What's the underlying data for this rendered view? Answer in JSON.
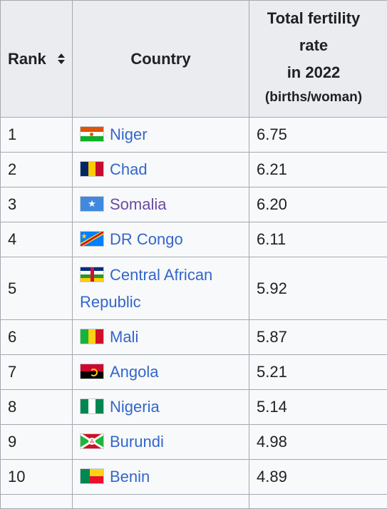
{
  "table": {
    "headers": {
      "rank": "Rank",
      "country": "Country",
      "tfr_line1": "Total fertility",
      "tfr_line2": "rate",
      "tfr_line3": "in 2022",
      "tfr_unit": "(births/woman)"
    },
    "rows": [
      {
        "rank": "1",
        "country": "Niger",
        "tfr": "6.75",
        "flag_icon": "niger-flag-icon"
      },
      {
        "rank": "2",
        "country": "Chad",
        "tfr": "6.21",
        "flag_icon": "chad-flag-icon"
      },
      {
        "rank": "3",
        "country": "Somalia",
        "tfr": "6.20",
        "flag_icon": "somalia-flag-icon"
      },
      {
        "rank": "4",
        "country": "DR Congo",
        "tfr": "6.11",
        "flag_icon": "dr-congo-flag-icon"
      },
      {
        "rank": "5",
        "country_line1": "Central African",
        "country_line2": "Republic",
        "tfr": "5.92",
        "flag_icon": "central-african-republic-flag-icon"
      },
      {
        "rank": "6",
        "country": "Mali",
        "tfr": "5.87",
        "flag_icon": "mali-flag-icon"
      },
      {
        "rank": "7",
        "country": "Angola",
        "tfr": "5.21",
        "flag_icon": "angola-flag-icon"
      },
      {
        "rank": "8",
        "country": "Nigeria",
        "tfr": "5.14",
        "flag_icon": "nigeria-flag-icon"
      },
      {
        "rank": "9",
        "country": "Burundi",
        "tfr": "4.98",
        "flag_icon": "burundi-flag-icon"
      },
      {
        "rank": "10",
        "country": "Benin",
        "tfr": "4.89",
        "flag_icon": "benin-flag-icon"
      }
    ]
  },
  "colors": {
    "link": "#3366cc",
    "visited_link": "#6b4ba1",
    "header_bg": "#eaecf0",
    "cell_bg": "#f8f9fa",
    "border": "#a2a9b1"
  }
}
